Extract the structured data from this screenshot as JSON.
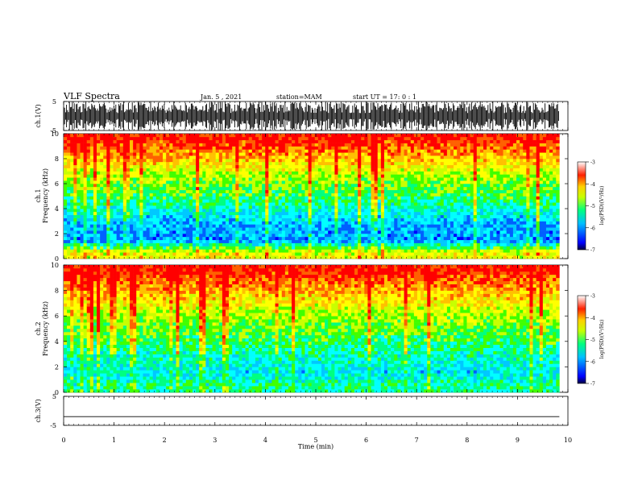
{
  "header": {
    "title": "VLF Spectra",
    "date": "Jan. 5 , 2021",
    "station": "station=MAM",
    "start": "start UT =  17: 0  : 1"
  },
  "panels": {
    "ch1_wave_label": "ch.1(V)",
    "ch1_spec_label": "ch.1",
    "ch2_spec_label": "ch.2",
    "freq_label": "Frequency (kHz)",
    "ch3_wave_label": "ch.3(V)",
    "x_label": "Time (min)",
    "colorbar_label": "log(PSD)(V²/Hz)"
  },
  "colors": {
    "spectral_scale": [
      "#000080",
      "#0000ff",
      "#0080ff",
      "#00ffff",
      "#00ff40",
      "#c8ff00",
      "#ffff00",
      "#ff8000",
      "#ff0000"
    ]
  },
  "chart_data": [
    {
      "type": "line",
      "name": "ch1-waveform",
      "ylabel": "ch.1(V)",
      "ylim": [
        -5,
        5
      ],
      "yticks": [
        5,
        -5
      ],
      "xlim": [
        0,
        10
      ],
      "data_extent_min": 9.83,
      "description_values": {
        "saturated_min": -5,
        "saturated_max": 5
      }
    },
    {
      "type": "heatmap",
      "name": "ch1-spectrogram",
      "ylabel": "Frequency (kHz)",
      "ylim": [
        0,
        10
      ],
      "yticks": [
        0,
        2,
        4,
        6,
        8,
        10
      ],
      "xlim": [
        0,
        10
      ],
      "data_extent_min": 9.83,
      "colorbar": {
        "label": "log(PSD)(V²/Hz)",
        "range": [
          -7,
          -3
        ],
        "ticks": [
          -3,
          -4,
          -5,
          -6,
          -7
        ]
      },
      "band_profile_log_psd": [
        {
          "freq_khz": 0.5,
          "value": -4.3
        },
        {
          "freq_khz": 1.5,
          "value": -6.0
        },
        {
          "freq_khz": 3.0,
          "value": -5.8
        },
        {
          "freq_khz": 5.0,
          "value": -5.0
        },
        {
          "freq_khz": 6.5,
          "value": -4.6
        },
        {
          "freq_khz": 8.0,
          "value": -3.9
        },
        {
          "freq_khz": 9.5,
          "value": -3.2
        }
      ]
    },
    {
      "type": "heatmap",
      "name": "ch2-spectrogram",
      "ylabel": "Frequency (kHz)",
      "ylim": [
        0,
        10
      ],
      "yticks": [
        0,
        2,
        4,
        6,
        8,
        10
      ],
      "xlim": [
        0,
        10
      ],
      "data_extent_min": 9.83,
      "colorbar": {
        "label": "log(PSD)(V²/Hz)",
        "range": [
          -7,
          -3
        ],
        "ticks": [
          -3,
          -4,
          -5,
          -6,
          -7
        ]
      },
      "band_profile_log_psd": [
        {
          "freq_khz": 0.5,
          "value": -5.2
        },
        {
          "freq_khz": 1.5,
          "value": -5.6
        },
        {
          "freq_khz": 3.0,
          "value": -5.3
        },
        {
          "freq_khz": 5.0,
          "value": -4.8
        },
        {
          "freq_khz": 6.5,
          "value": -4.4
        },
        {
          "freq_khz": 8.0,
          "value": -3.8
        },
        {
          "freq_khz": 9.5,
          "value": -3.2
        }
      ]
    },
    {
      "type": "line",
      "name": "ch3-waveform",
      "ylabel": "ch.3(V)",
      "ylim": [
        -5,
        5
      ],
      "yticks": [
        5,
        -5
      ],
      "xlim": [
        0,
        10
      ],
      "data_extent_min": 9.83,
      "x": [
        0,
        9.83
      ],
      "y": [
        -2,
        -2
      ]
    }
  ],
  "x_axis": {
    "label": "Time (min)",
    "range": [
      0,
      10
    ],
    "ticks": [
      0,
      1,
      2,
      3,
      4,
      5,
      6,
      7,
      8,
      9,
      10
    ]
  }
}
